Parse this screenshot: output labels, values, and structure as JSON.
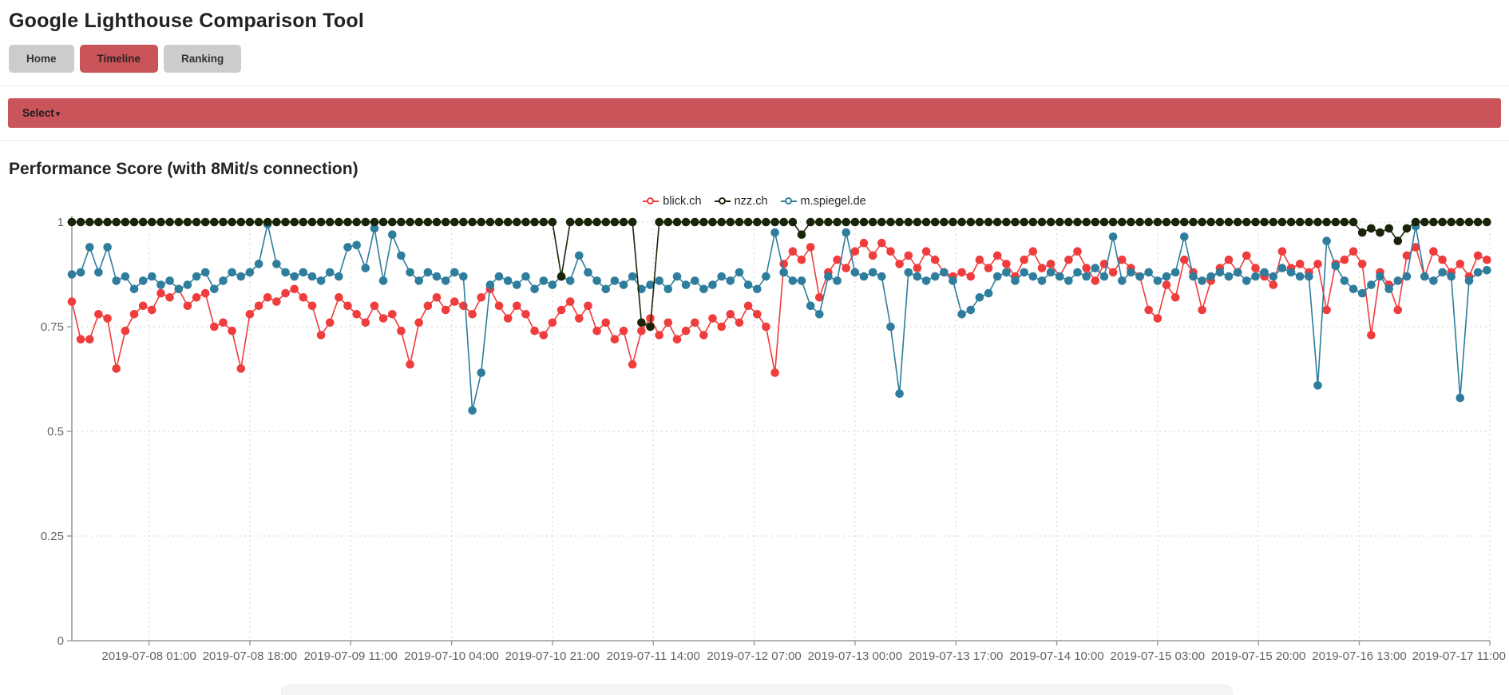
{
  "header": {
    "title": "Google Lighthouse Comparison Tool"
  },
  "nav": {
    "tabs": [
      {
        "label": "Home",
        "active": false
      },
      {
        "label": "Timeline",
        "active": true
      },
      {
        "label": "Ranking",
        "active": false
      }
    ]
  },
  "select_bar": {
    "label": "Select",
    "caret": "▾"
  },
  "section": {
    "heading": "Performance Score (with 8Mit/s connection)"
  },
  "theme": {
    "accent": "#c9545a",
    "button_gray": "#cccccc",
    "axis_color": "#999999",
    "grid_color": "#d9d9d9",
    "tick_label_color": "#5f6368"
  },
  "chart_data": {
    "type": "line",
    "title": "Performance Score (with 8Mit/s connection)",
    "x_axis": "time",
    "x_start": "2019-07-07 12:00",
    "x_end_hours": 239,
    "point_interval_hours": 1.5,
    "ylim": [
      0,
      1
    ],
    "y_ticks": [
      0,
      0.25,
      0.5,
      0.75,
      1
    ],
    "y_tick_labels": [
      "0",
      "0.25",
      "0.5",
      "0.75",
      "1"
    ],
    "grid": true,
    "legend_position": "top-center",
    "x_ticks": [
      {
        "hour": 13,
        "label": "2019-07-08 01:00"
      },
      {
        "hour": 30,
        "label": "2019-07-08 18:00"
      },
      {
        "hour": 47,
        "label": "2019-07-09 11:00"
      },
      {
        "hour": 64,
        "label": "2019-07-10 04:00"
      },
      {
        "hour": 81,
        "label": "2019-07-10 21:00"
      },
      {
        "hour": 98,
        "label": "2019-07-11 14:00"
      },
      {
        "hour": 115,
        "label": "2019-07-12 07:00"
      },
      {
        "hour": 132,
        "label": "2019-07-13 00:00"
      },
      {
        "hour": 149,
        "label": "2019-07-13 17:00"
      },
      {
        "hour": 166,
        "label": "2019-07-14 10:00"
      },
      {
        "hour": 183,
        "label": "2019-07-15 03:00"
      },
      {
        "hour": 200,
        "label": "2019-07-15 20:00"
      },
      {
        "hour": 217,
        "label": "2019-07-16 13:00"
      },
      {
        "hour": 239,
        "label": "2019-07-17 11:00"
      }
    ],
    "series": [
      {
        "name": "blick.ch",
        "color": "#ef3c3c",
        "values": [
          0.81,
          0.72,
          0.72,
          0.78,
          0.77,
          0.65,
          0.74,
          0.78,
          0.8,
          0.79,
          0.83,
          0.82,
          0.84,
          0.8,
          0.82,
          0.83,
          0.75,
          0.76,
          0.74,
          0.65,
          0.78,
          0.8,
          0.82,
          0.81,
          0.83,
          0.84,
          0.82,
          0.8,
          0.73,
          0.76,
          0.82,
          0.8,
          0.78,
          0.76,
          0.8,
          0.77,
          0.78,
          0.74,
          0.66,
          0.76,
          0.8,
          0.82,
          0.79,
          0.81,
          0.8,
          0.78,
          0.82,
          0.84,
          0.8,
          0.77,
          0.8,
          0.78,
          0.74,
          0.73,
          0.76,
          0.79,
          0.81,
          0.77,
          0.8,
          0.74,
          0.76,
          0.72,
          0.74,
          0.66,
          0.74,
          0.77,
          0.73,
          0.76,
          0.72,
          0.74,
          0.76,
          0.73,
          0.77,
          0.75,
          0.78,
          0.76,
          0.8,
          0.78,
          0.75,
          0.64,
          0.9,
          0.93,
          0.91,
          0.94,
          0.82,
          0.88,
          0.91,
          0.89,
          0.93,
          0.95,
          0.92,
          0.95,
          0.93,
          0.9,
          0.92,
          0.89,
          0.93,
          0.91,
          0.88,
          0.87,
          0.88,
          0.87,
          0.91,
          0.89,
          0.92,
          0.9,
          0.87,
          0.91,
          0.93,
          0.89,
          0.9,
          0.87,
          0.91,
          0.93,
          0.89,
          0.86,
          0.9,
          0.88,
          0.91,
          0.89,
          0.87,
          0.79,
          0.77,
          0.85,
          0.82,
          0.91,
          0.88,
          0.79,
          0.86,
          0.89,
          0.91,
          0.88,
          0.92,
          0.89,
          0.87,
          0.85,
          0.93,
          0.89,
          0.9,
          0.88,
          0.9,
          0.79,
          0.9,
          0.91,
          0.93,
          0.9,
          0.73,
          0.88,
          0.85,
          0.79,
          0.92,
          0.94,
          0.87,
          0.93,
          0.91,
          0.88,
          0.9,
          0.87,
          0.92,
          0.91
        ]
      },
      {
        "name": "nzz.ch",
        "color": "#182508",
        "values": [
          1,
          1,
          1,
          1,
          1,
          1,
          1,
          1,
          1,
          1,
          1,
          1,
          1,
          1,
          1,
          1,
          1,
          1,
          1,
          1,
          1,
          1,
          1,
          1,
          1,
          1,
          1,
          1,
          1,
          1,
          1,
          1,
          1,
          1,
          1,
          1,
          1,
          1,
          1,
          1,
          1,
          1,
          1,
          1,
          1,
          1,
          1,
          1,
          1,
          1,
          1,
          1,
          1,
          1,
          1,
          0.87,
          1,
          1,
          1,
          1,
          1,
          1,
          1,
          1,
          0.76,
          0.75,
          1,
          1,
          1,
          1,
          1,
          1,
          1,
          1,
          1,
          1,
          1,
          1,
          1,
          1,
          1,
          1,
          0.97,
          1,
          1,
          1,
          1,
          1,
          1,
          1,
          1,
          1,
          1,
          1,
          1,
          1,
          1,
          1,
          1,
          1,
          1,
          1,
          1,
          1,
          1,
          1,
          1,
          1,
          1,
          1,
          1,
          1,
          1,
          1,
          1,
          1,
          1,
          1,
          1,
          1,
          1,
          1,
          1,
          1,
          1,
          1,
          1,
          1,
          1,
          1,
          1,
          1,
          1,
          1,
          1,
          1,
          1,
          1,
          1,
          1,
          1,
          1,
          1,
          1,
          1,
          0.975,
          0.985,
          0.975,
          0.985,
          0.955,
          0.985,
          1,
          1,
          1,
          1,
          1,
          1,
          1,
          1,
          1
        ]
      },
      {
        "name": "m.spiegel.de",
        "color": "#2e7d9c",
        "values": [
          0.875,
          0.88,
          0.94,
          0.88,
          0.94,
          0.86,
          0.87,
          0.84,
          0.86,
          0.87,
          0.85,
          0.86,
          0.84,
          0.85,
          0.87,
          0.88,
          0.84,
          0.86,
          0.88,
          0.87,
          0.88,
          0.9,
          0.995,
          0.9,
          0.88,
          0.87,
          0.88,
          0.87,
          0.86,
          0.88,
          0.87,
          0.94,
          0.945,
          0.89,
          0.985,
          0.86,
          0.97,
          0.92,
          0.88,
          0.86,
          0.88,
          0.87,
          0.86,
          0.88,
          0.87,
          0.55,
          0.64,
          0.85,
          0.87,
          0.86,
          0.85,
          0.87,
          0.84,
          0.86,
          0.85,
          0.87,
          0.86,
          0.92,
          0.88,
          0.86,
          0.84,
          0.86,
          0.85,
          0.87,
          0.84,
          0.85,
          0.86,
          0.84,
          0.87,
          0.85,
          0.86,
          0.84,
          0.85,
          0.87,
          0.86,
          0.88,
          0.85,
          0.84,
          0.87,
          0.975,
          0.88,
          0.86,
          0.86,
          0.8,
          0.78,
          0.87,
          0.86,
          0.975,
          0.88,
          0.87,
          0.88,
          0.87,
          0.75,
          0.59,
          0.88,
          0.87,
          0.86,
          0.87,
          0.88,
          0.86,
          0.78,
          0.79,
          0.82,
          0.83,
          0.87,
          0.88,
          0.86,
          0.88,
          0.87,
          0.86,
          0.88,
          0.87,
          0.86,
          0.88,
          0.87,
          0.89,
          0.87,
          0.965,
          0.86,
          0.88,
          0.87,
          0.88,
          0.86,
          0.87,
          0.88,
          0.965,
          0.87,
          0.86,
          0.87,
          0.88,
          0.87,
          0.88,
          0.86,
          0.87,
          0.88,
          0.87,
          0.89,
          0.88,
          0.87,
          0.87,
          0.61,
          0.955,
          0.895,
          0.86,
          0.84,
          0.83,
          0.85,
          0.87,
          0.84,
          0.86,
          0.87,
          0.99,
          0.87,
          0.86,
          0.88,
          0.87,
          0.58,
          0.86,
          0.88,
          0.885
        ]
      }
    ]
  }
}
